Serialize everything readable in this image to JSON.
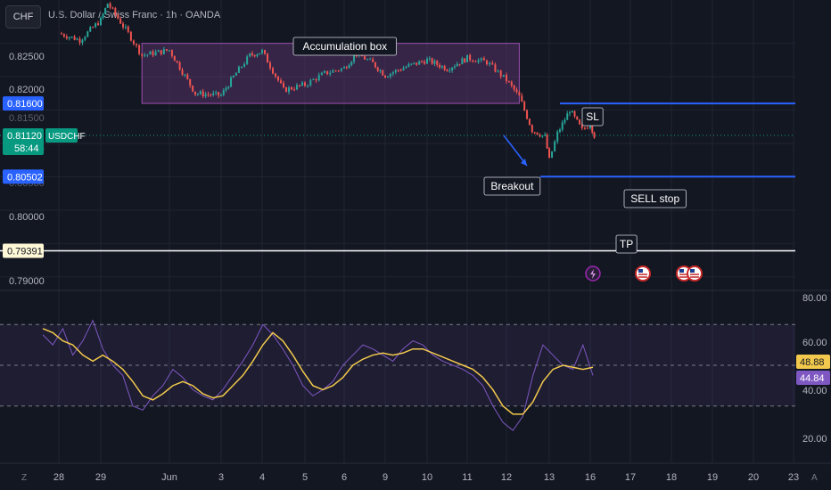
{
  "header": {
    "symbol_button": "CHF",
    "title": "U.S. Dollar / Swiss Franc · 1h · OANDA"
  },
  "colors": {
    "background": "#131722",
    "up": "#26a69a",
    "down": "#ef5350",
    "box_fill": "#7b3f8c",
    "box_border": "#9c4fb0",
    "level_line": "#2962ff",
    "tp_line": "#ffffff",
    "rsi": "#7e57c2",
    "rsi_ma": "#f2c94c",
    "last_price_label": "#089981"
  },
  "chart_data": [
    {
      "type": "candlestick",
      "symbol": "USDCHF",
      "timeframe": "1h",
      "x_ticks": [
        "28",
        "29",
        "Jun",
        "3",
        "4",
        "5",
        "6",
        "9",
        "10",
        "11",
        "12",
        "13",
        "16",
        "17",
        "18",
        "19",
        "20",
        "23"
      ],
      "y_ticks": [
        "0.82500",
        "0.82000",
        "0.80000",
        "0.79000"
      ],
      "y_ticks_partly_hidden": [
        "0.81500",
        "0.81000",
        "0.80500",
        "0.79500"
      ],
      "ylim": [
        0.7885,
        0.8315
      ],
      "price_path": [
        {
          "x": "28",
          "y": 0.8265
        },
        {
          "x": "28.5",
          "y": 0.8255
        },
        {
          "x": "29",
          "y": 0.8285
        },
        {
          "x": "29.1",
          "y": 0.831
        },
        {
          "x": "29.4",
          "y": 0.8265
        },
        {
          "x": "29.6",
          "y": 0.8232
        },
        {
          "x": "Jun",
          "y": 0.824
        },
        {
          "x": "Jun.5",
          "y": 0.8175
        },
        {
          "x": "3",
          "y": 0.8172
        },
        {
          "x": "3.3",
          "y": 0.82
        },
        {
          "x": "3.7",
          "y": 0.8232
        },
        {
          "x": "4",
          "y": 0.8238
        },
        {
          "x": "4.5",
          "y": 0.818
        },
        {
          "x": "5",
          "y": 0.8188
        },
        {
          "x": "5.5",
          "y": 0.8205
        },
        {
          "x": "6",
          "y": 0.8213
        },
        {
          "x": "6.3",
          "y": 0.8235
        },
        {
          "x": "6.7",
          "y": 0.822
        },
        {
          "x": "9",
          "y": 0.8202
        },
        {
          "x": "9.5",
          "y": 0.8215
        },
        {
          "x": "10",
          "y": 0.8225
        },
        {
          "x": "10.5",
          "y": 0.8212
        },
        {
          "x": "11",
          "y": 0.8228
        },
        {
          "x": "11.5",
          "y": 0.8222
        },
        {
          "x": "12",
          "y": 0.8195
        },
        {
          "x": "12.3",
          "y": 0.817
        },
        {
          "x": "12.6",
          "y": 0.812
        },
        {
          "x": "12.9",
          "y": 0.811
        },
        {
          "x": "13",
          "y": 0.8075
        },
        {
          "x": "13.2",
          "y": 0.8115
        },
        {
          "x": "13.5",
          "y": 0.815
        },
        {
          "x": "13.8",
          "y": 0.812
        },
        {
          "x": "16",
          "y": 0.813
        },
        {
          "x": "16.1",
          "y": 0.8112
        }
      ],
      "current_price": "0.81120",
      "countdown": "58:44",
      "price_tags": [
        "0.81600",
        "0.80502",
        "0.79391"
      ],
      "levels": [
        {
          "name": "SL",
          "price": 0.816
        },
        {
          "name": "SELL stop",
          "price": 0.80502
        },
        {
          "name": "TP",
          "price": 0.79391
        }
      ],
      "accumulation_box": {
        "label": "Accumulation box",
        "from": "29.6",
        "to": "12.3",
        "top": 0.825,
        "bottom": 0.816
      },
      "annotations": [
        "Accumulation box",
        "SL",
        "Breakout",
        "SELL stop",
        "TP"
      ],
      "event_icons": [
        "lightning-icon",
        "us-flag-icon",
        "us-flag-icon",
        "us-flag-icon"
      ]
    },
    {
      "type": "line",
      "indicator": "RSI",
      "y_ticks": [
        "80.00",
        "60.00",
        "40.00",
        "20.00"
      ],
      "ylim": [
        15,
        85
      ],
      "bands": [
        30,
        50,
        70
      ],
      "series": [
        {
          "values": [
            65,
            60,
            68,
            55,
            62,
            72,
            58,
            50,
            45,
            30,
            28,
            35,
            40,
            48,
            44,
            38,
            35,
            33,
            38,
            45,
            52,
            60,
            70,
            65,
            58,
            50,
            40,
            35,
            38,
            42,
            50,
            55,
            60,
            58,
            55,
            52,
            58,
            62,
            60,
            55,
            52,
            50,
            48,
            45,
            40,
            30,
            22,
            18,
            25,
            45,
            60,
            55,
            50,
            48,
            60,
            45
          ]
        },
        {
          "values": [
            68,
            66,
            62,
            60,
            55,
            52,
            55,
            52,
            48,
            42,
            35,
            33,
            36,
            40,
            42,
            40,
            36,
            34,
            35,
            40,
            45,
            52,
            60,
            66,
            62,
            55,
            47,
            40,
            38,
            40,
            44,
            50,
            53,
            55,
            56,
            55,
            56,
            58,
            58,
            56,
            54,
            52,
            50,
            48,
            44,
            38,
            30,
            26,
            26,
            32,
            42,
            48,
            50,
            49,
            48,
            49
          ]
        }
      ],
      "last_values": [
        "48.88",
        "44.84"
      ]
    }
  ]
}
